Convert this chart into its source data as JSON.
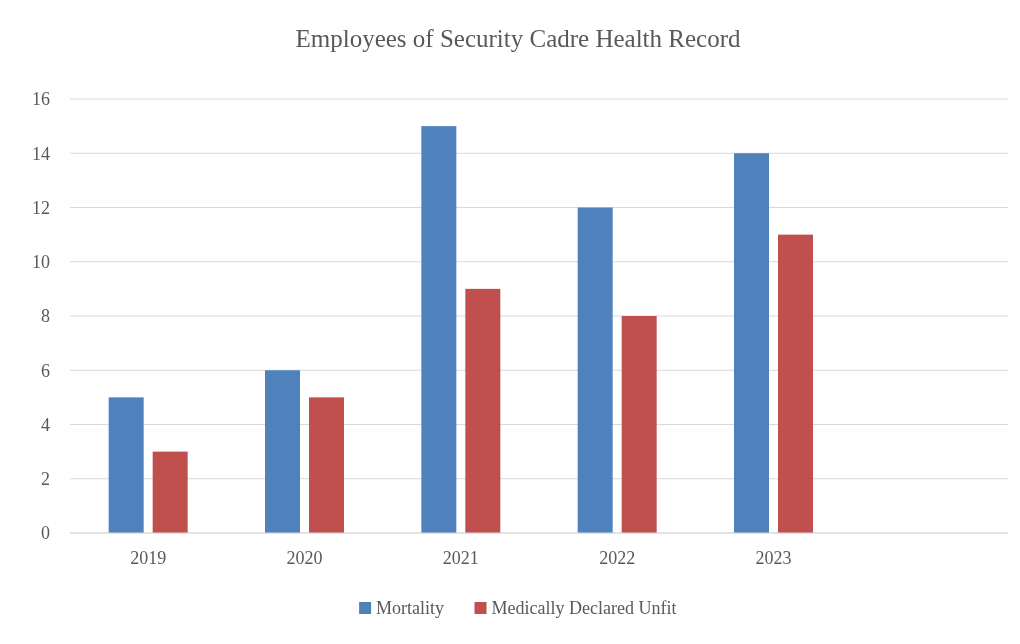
{
  "chart_data": {
    "type": "bar",
    "title": "Employees of Security Cadre Health Record",
    "categories": [
      "2019",
      "2020",
      "2021",
      "2022",
      "2023",
      null
    ],
    "series": [
      {
        "name": "Mortality",
        "color": "#4f81bd",
        "values": [
          5,
          6,
          15,
          12,
          14,
          null
        ]
      },
      {
        "name": "Medically Declared Unfit",
        "color": "#c0504d",
        "values": [
          3,
          5,
          9,
          8,
          11,
          null
        ]
      }
    ],
    "ylim": [
      0,
      16
    ],
    "yticks": [
      0,
      2,
      4,
      6,
      8,
      10,
      12,
      14,
      16
    ],
    "grid": "y",
    "legend": "bottom"
  }
}
